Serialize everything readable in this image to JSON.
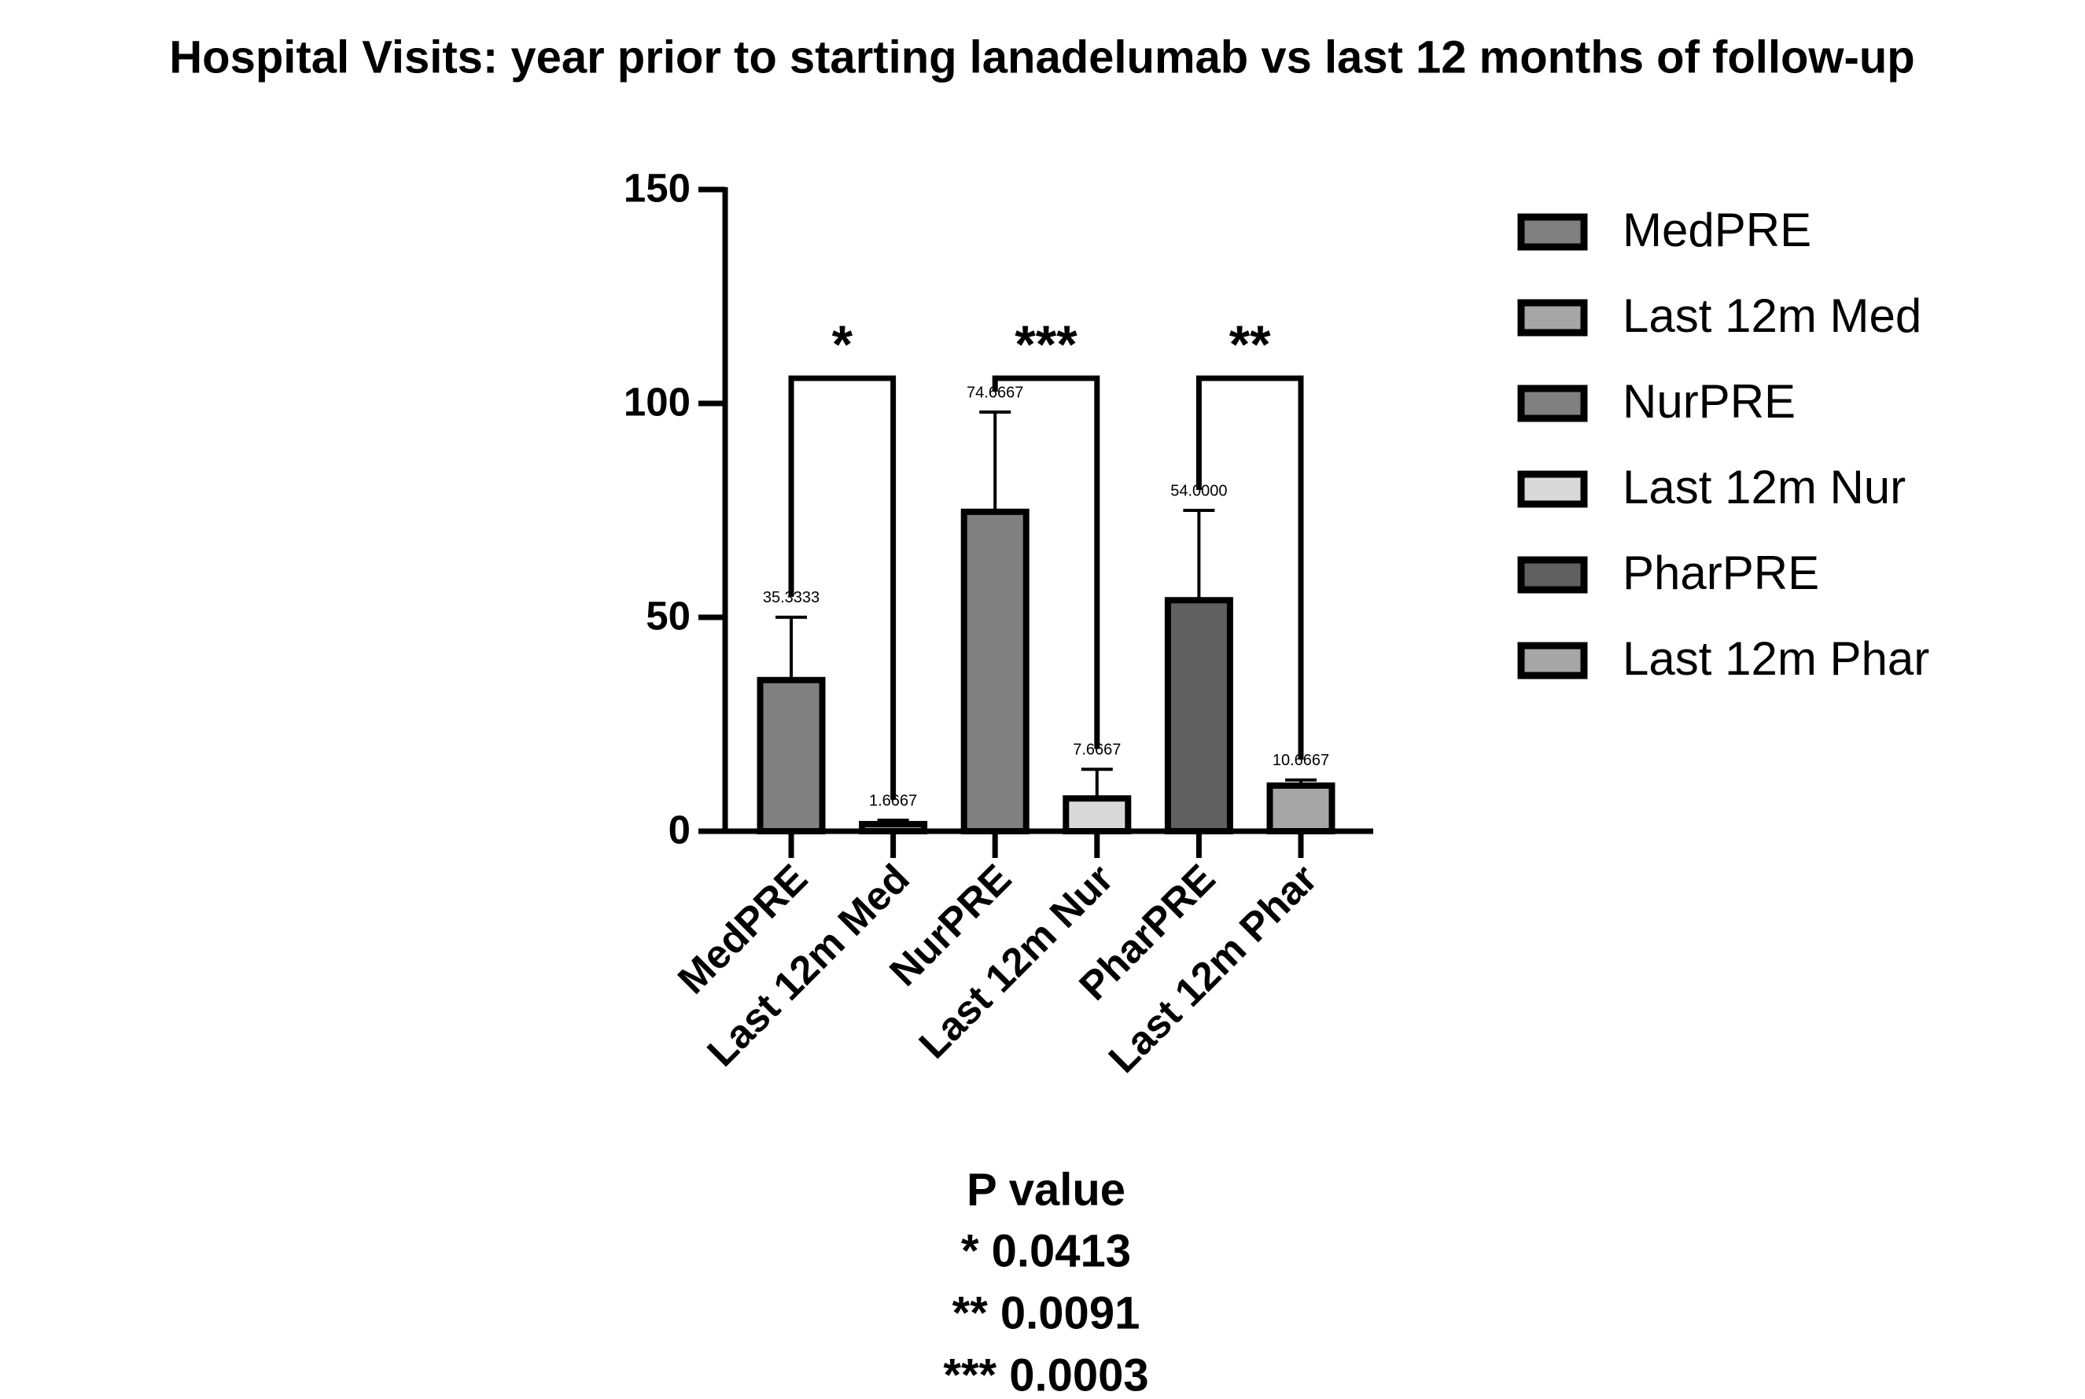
{
  "chart_data": {
    "type": "bar",
    "title": "Hospital Visits: year prior to starting lanadelumab vs last 12 months of follow-up",
    "categories": [
      "MedPRE",
      "Last 12m Med",
      "NurPRE",
      "Last 12m Nur",
      "PharPRE",
      "Last 12m Phar"
    ],
    "values": [
      35.3333,
      1.6667,
      74.6667,
      7.6667,
      54.0,
      10.6667
    ],
    "value_labels": [
      "35.3333",
      "1.6667",
      "74.6667",
      "7.6667",
      "54.0000",
      "10.6667"
    ],
    "errors": [
      14.7,
      0.9,
      23.3,
      6.8,
      21,
      1.3
    ],
    "colors": [
      "#808080",
      "#a6a6a6",
      "#808080",
      "#d9d9d9",
      "#606060",
      "#a6a6a6"
    ],
    "ylim": [
      0,
      150
    ],
    "yticks": [
      0,
      50,
      100,
      150
    ],
    "significance_labels": [
      "*",
      "***",
      "**"
    ],
    "legend": "right",
    "p_value_note": {
      "title": "P value",
      "lines": [
        "* 0.0413",
        "** 0.0091",
        "*** 0.0003"
      ]
    }
  }
}
